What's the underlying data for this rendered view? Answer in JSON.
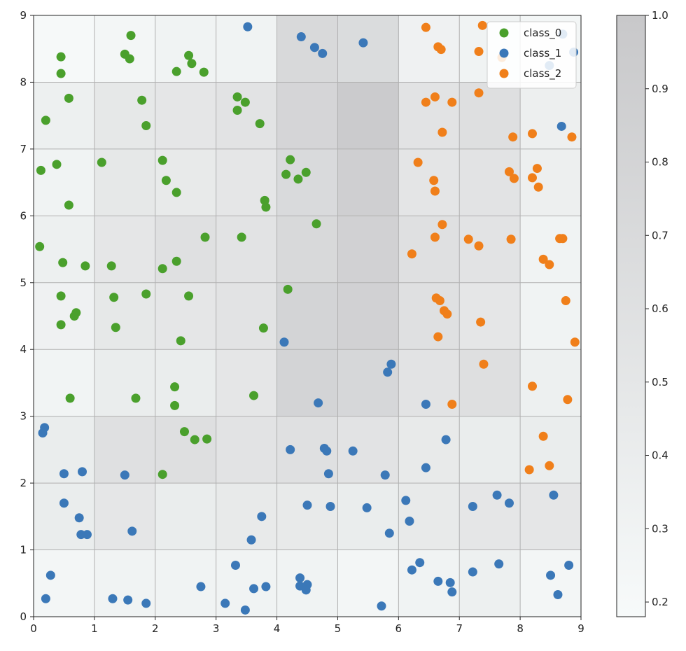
{
  "chart_data": {
    "type": "scatter",
    "title": "",
    "xlabel": "",
    "ylabel": "",
    "xlim": [
      0,
      9
    ],
    "ylim": [
      0,
      9
    ],
    "grid": true,
    "legend_placement": "top-right",
    "x_ticks": [
      "0",
      "1",
      "2",
      "3",
      "4",
      "5",
      "6",
      "7",
      "8",
      "9"
    ],
    "y_ticks": [
      "0",
      "1",
      "2",
      "3",
      "4",
      "5",
      "6",
      "7",
      "8",
      "9"
    ],
    "heatmap": {
      "colormap": "grey-white",
      "color_low": "#f7fafa",
      "color_high": "#c8c8ca",
      "vmin": 0.18,
      "vmax": 1.0,
      "colorbar_ticks": [
        "0.2",
        "0.3",
        "0.4",
        "0.5",
        "0.6",
        "0.7",
        "0.8",
        "0.9",
        "1.0"
      ],
      "rows_top_to_bottom": [
        [
          0.2,
          0.25,
          0.3,
          0.3,
          0.72,
          0.68,
          0.32,
          0.3,
          0.25
        ],
        [
          0.35,
          0.48,
          0.5,
          0.55,
          0.78,
          0.95,
          0.55,
          0.62,
          0.36
        ],
        [
          0.3,
          0.48,
          0.45,
          0.5,
          0.7,
          0.88,
          0.52,
          0.55,
          0.36
        ],
        [
          0.35,
          0.5,
          0.6,
          0.55,
          0.72,
          0.85,
          0.6,
          0.55,
          0.3
        ],
        [
          0.32,
          0.48,
          0.5,
          0.55,
          0.8,
          0.85,
          0.6,
          0.5,
          0.3
        ],
        [
          0.28,
          0.4,
          0.4,
          0.5,
          0.8,
          0.75,
          0.55,
          0.62,
          0.35
        ],
        [
          0.4,
          0.6,
          0.62,
          0.55,
          0.6,
          0.55,
          0.45,
          0.4,
          0.4
        ],
        [
          0.4,
          0.5,
          0.4,
          0.45,
          0.45,
          0.4,
          0.45,
          0.5,
          0.5
        ],
        [
          0.25,
          0.3,
          0.3,
          0.3,
          0.3,
          0.25,
          0.3,
          0.35,
          0.25
        ]
      ]
    },
    "series": [
      {
        "name": "class_0",
        "color": "#4aa02c",
        "points": [
          [
            0.45,
            8.38
          ],
          [
            0.45,
            8.13
          ],
          [
            1.6,
            8.7
          ],
          [
            1.5,
            8.42
          ],
          [
            1.58,
            8.35
          ],
          [
            2.55,
            8.4
          ],
          [
            2.6,
            8.28
          ],
          [
            2.35,
            8.16
          ],
          [
            2.8,
            8.15
          ],
          [
            0.58,
            7.76
          ],
          [
            0.2,
            7.43
          ],
          [
            1.78,
            7.73
          ],
          [
            1.85,
            7.35
          ],
          [
            3.35,
            7.78
          ],
          [
            3.48,
            7.7
          ],
          [
            3.35,
            7.58
          ],
          [
            3.72,
            7.38
          ],
          [
            0.12,
            6.68
          ],
          [
            0.38,
            6.77
          ],
          [
            1.12,
            6.8
          ],
          [
            2.12,
            6.83
          ],
          [
            2.18,
            6.53
          ],
          [
            2.35,
            6.35
          ],
          [
            0.58,
            6.16
          ],
          [
            4.22,
            6.84
          ],
          [
            4.15,
            6.62
          ],
          [
            4.35,
            6.55
          ],
          [
            4.48,
            6.65
          ],
          [
            3.8,
            6.23
          ],
          [
            3.82,
            6.13
          ],
          [
            0.1,
            5.54
          ],
          [
            0.48,
            5.3
          ],
          [
            0.85,
            5.25
          ],
          [
            1.28,
            5.25
          ],
          [
            2.35,
            5.32
          ],
          [
            2.12,
            5.21
          ],
          [
            2.82,
            5.68
          ],
          [
            3.42,
            5.68
          ],
          [
            4.65,
            5.88
          ],
          [
            0.45,
            4.8
          ],
          [
            1.32,
            4.78
          ],
          [
            1.85,
            4.83
          ],
          [
            2.55,
            4.8
          ],
          [
            4.18,
            4.9
          ],
          [
            0.7,
            4.55
          ],
          [
            0.67,
            4.5
          ],
          [
            0.45,
            4.37
          ],
          [
            1.35,
            4.33
          ],
          [
            2.42,
            4.13
          ],
          [
            3.78,
            4.32
          ],
          [
            2.32,
            3.44
          ],
          [
            2.32,
            3.16
          ],
          [
            0.6,
            3.27
          ],
          [
            1.68,
            3.27
          ],
          [
            3.62,
            3.31
          ],
          [
            2.48,
            2.77
          ],
          [
            2.65,
            2.65
          ],
          [
            2.85,
            2.66
          ],
          [
            2.12,
            2.13
          ]
        ]
      },
      {
        "name": "class_1",
        "color": "#3b78b8",
        "points": [
          [
            3.52,
            8.83
          ],
          [
            4.4,
            8.68
          ],
          [
            4.62,
            8.52
          ],
          [
            4.75,
            8.43
          ],
          [
            5.42,
            8.59
          ],
          [
            8.7,
            8.72
          ],
          [
            8.48,
            8.25
          ],
          [
            8.88,
            8.45
          ],
          [
            8.68,
            7.34
          ],
          [
            4.12,
            4.11
          ],
          [
            5.88,
            3.78
          ],
          [
            5.82,
            3.66
          ],
          [
            4.68,
            3.2
          ],
          [
            6.45,
            3.18
          ],
          [
            0.18,
            2.83
          ],
          [
            0.15,
            2.75
          ],
          [
            0.5,
            2.14
          ],
          [
            0.8,
            2.17
          ],
          [
            1.5,
            2.12
          ],
          [
            4.22,
            2.5
          ],
          [
            4.78,
            2.52
          ],
          [
            4.82,
            2.48
          ],
          [
            5.25,
            2.48
          ],
          [
            4.85,
            2.14
          ],
          [
            5.78,
            2.12
          ],
          [
            6.45,
            2.23
          ],
          [
            6.78,
            2.65
          ],
          [
            0.5,
            1.7
          ],
          [
            0.75,
            1.48
          ],
          [
            0.78,
            1.23
          ],
          [
            0.88,
            1.23
          ],
          [
            1.62,
            1.28
          ],
          [
            3.75,
            1.5
          ],
          [
            3.58,
            1.15
          ],
          [
            4.5,
            1.67
          ],
          [
            4.88,
            1.65
          ],
          [
            5.48,
            1.63
          ],
          [
            5.85,
            1.25
          ],
          [
            6.12,
            1.74
          ],
          [
            6.18,
            1.43
          ],
          [
            7.22,
            1.65
          ],
          [
            7.62,
            1.82
          ],
          [
            7.82,
            1.7
          ],
          [
            8.55,
            1.82
          ],
          [
            0.28,
            0.62
          ],
          [
            0.2,
            0.27
          ],
          [
            1.3,
            0.27
          ],
          [
            1.55,
            0.25
          ],
          [
            1.85,
            0.2
          ],
          [
            2.75,
            0.45
          ],
          [
            3.15,
            0.2
          ],
          [
            3.32,
            0.77
          ],
          [
            3.48,
            0.1
          ],
          [
            3.62,
            0.42
          ],
          [
            3.82,
            0.45
          ],
          [
            4.38,
            0.58
          ],
          [
            4.38,
            0.46
          ],
          [
            4.5,
            0.48
          ],
          [
            4.48,
            0.4
          ],
          [
            5.72,
            0.16
          ],
          [
            6.22,
            0.7
          ],
          [
            6.35,
            0.81
          ],
          [
            6.65,
            0.53
          ],
          [
            6.85,
            0.51
          ],
          [
            6.88,
            0.37
          ],
          [
            7.22,
            0.67
          ],
          [
            7.65,
            0.79
          ],
          [
            8.5,
            0.62
          ],
          [
            8.62,
            0.33
          ],
          [
            8.8,
            0.77
          ]
        ]
      },
      {
        "name": "class_2",
        "color": "#f07f1a",
        "points": [
          [
            6.45,
            8.82
          ],
          [
            6.65,
            8.53
          ],
          [
            6.7,
            8.49
          ],
          [
            7.38,
            8.85
          ],
          [
            7.32,
            8.46
          ],
          [
            7.7,
            8.37
          ],
          [
            6.45,
            7.7
          ],
          [
            6.6,
            7.78
          ],
          [
            6.88,
            7.7
          ],
          [
            7.32,
            7.84
          ],
          [
            6.72,
            7.25
          ],
          [
            7.88,
            7.18
          ],
          [
            8.2,
            7.23
          ],
          [
            8.85,
            7.18
          ],
          [
            6.32,
            6.8
          ],
          [
            6.58,
            6.53
          ],
          [
            6.6,
            6.37
          ],
          [
            7.82,
            6.66
          ],
          [
            7.9,
            6.56
          ],
          [
            8.2,
            6.57
          ],
          [
            8.28,
            6.71
          ],
          [
            8.3,
            6.43
          ],
          [
            6.22,
            5.43
          ],
          [
            6.6,
            5.68
          ],
          [
            6.72,
            5.87
          ],
          [
            7.15,
            5.65
          ],
          [
            7.32,
            5.55
          ],
          [
            7.85,
            5.65
          ],
          [
            8.65,
            5.66
          ],
          [
            8.7,
            5.66
          ],
          [
            8.38,
            5.35
          ],
          [
            8.48,
            5.27
          ],
          [
            6.62,
            4.77
          ],
          [
            6.68,
            4.73
          ],
          [
            6.75,
            4.58
          ],
          [
            6.8,
            4.53
          ],
          [
            7.35,
            4.41
          ],
          [
            6.65,
            4.19
          ],
          [
            8.75,
            4.73
          ],
          [
            8.9,
            4.11
          ],
          [
            7.4,
            3.78
          ],
          [
            8.2,
            3.45
          ],
          [
            8.78,
            3.25
          ],
          [
            6.88,
            3.18
          ],
          [
            8.38,
            2.7
          ],
          [
            8.48,
            2.26
          ],
          [
            8.15,
            2.2
          ]
        ]
      }
    ]
  }
}
